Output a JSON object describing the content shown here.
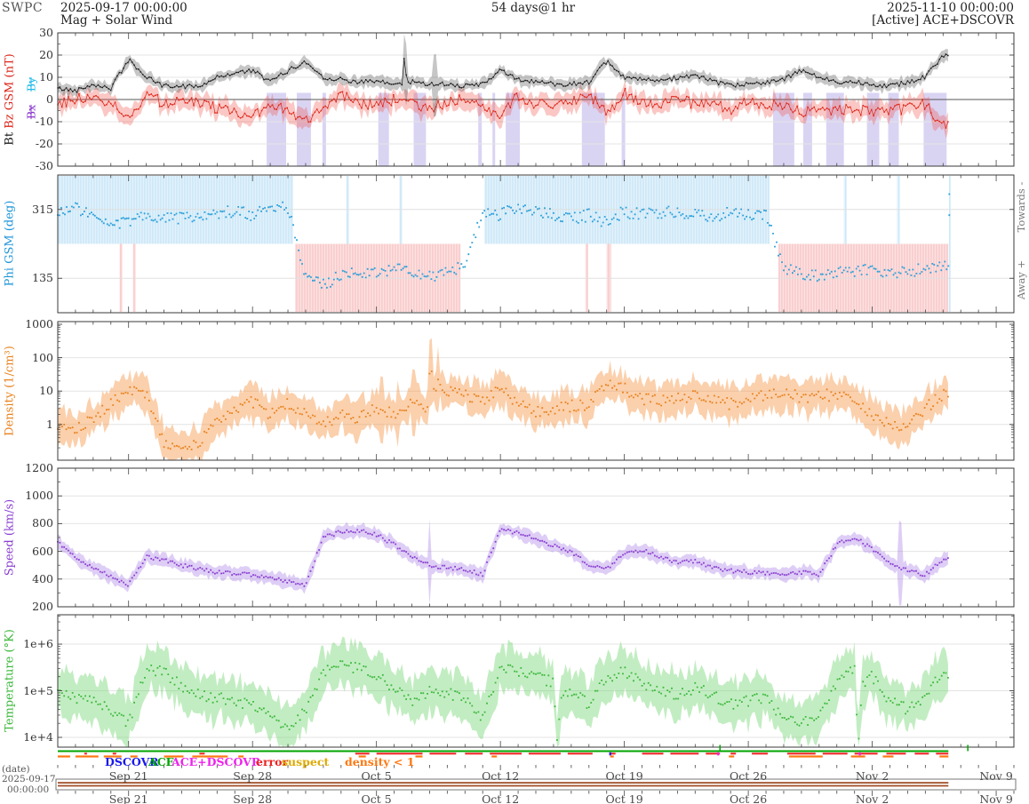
{
  "header": {
    "logo": "SWPC",
    "start_datetime": "2025-09-17 00:00:00",
    "duration": "54 days@1 hr",
    "end_datetime": "2025-11-10 00:00:00",
    "subtitle": "Mag + Solar Wind",
    "status": "[Active] ACE+DSCOVR"
  },
  "footer": {
    "date_label": "(date)",
    "start_date": "2025-09-17",
    "start_time": "00:00:00",
    "axis_dates": [
      "Sep 21",
      "Sep 28",
      "Oct 5",
      "Oct 12",
      "Oct 19",
      "Oct 26",
      "Nov 2",
      "Nov 9"
    ],
    "axis_date_days": [
      4,
      11,
      18,
      25,
      32,
      39,
      46,
      53
    ],
    "legend": [
      {
        "label": "DSCOVR",
        "color": "#1a1aee"
      },
      {
        "label": "ACE",
        "color": "#00a400"
      },
      {
        "label": "ACE+DSCOVR",
        "color": "#ee22ee"
      },
      {
        "label": "error",
        "color": "#ee2222"
      },
      {
        "label": "suspect",
        "color": "#ddaa00"
      },
      {
        "label": "density < 1",
        "color": "#ff7711"
      }
    ]
  },
  "chart_data": {
    "time_axis": {
      "start": "2025-09-17 00:00:00",
      "end": "2025-11-10 00:00:00",
      "span_days": 54,
      "cadence": "1 hr",
      "data_end_day": 50.3
    },
    "days": [
      0,
      1,
      2,
      3,
      4,
      5,
      6,
      7,
      8,
      9,
      10,
      11,
      12,
      13,
      14,
      15,
      16,
      17,
      18,
      19,
      20,
      21,
      22,
      23,
      24,
      25,
      26,
      27,
      28,
      29,
      30,
      31,
      32,
      33,
      34,
      35,
      36,
      37,
      38,
      39,
      40,
      41,
      42,
      43,
      44,
      45,
      46,
      47,
      48,
      49,
      50
    ],
    "panels": [
      {
        "id": "mag",
        "type": "line",
        "ylim": [
          -30,
          30
        ],
        "yticks": [
          "30",
          "20",
          "10",
          "0",
          "-10",
          "-20",
          "-30"
        ],
        "ytick_values": [
          30,
          20,
          10,
          0,
          -10,
          -20,
          -30
        ],
        "axis_label_parts": {
          "bt": "Bt ",
          "bz": "Bz GSM (nT)",
          "excluded_by": "By",
          "excluded_bx": "Bx"
        },
        "series": [
          {
            "name": "Bt",
            "color": "#1a1a1a",
            "values": [
              5,
              4,
              7,
              5,
              18,
              10,
              6,
              6,
              6,
              10,
              12,
              13,
              8,
              13,
              17,
              10,
              9,
              8,
              8,
              7,
              8,
              7,
              7,
              6,
              7,
              13,
              9,
              8,
              7,
              7,
              8,
              17,
              10,
              9,
              8,
              10,
              11,
              8,
              6,
              7,
              8,
              9,
              13,
              10,
              8,
              8,
              7,
              6,
              8,
              10,
              20
            ]
          },
          {
            "name": "Bz",
            "color": "#dd2418",
            "values": [
              -2,
              0,
              1,
              -1,
              -9,
              3,
              -2,
              0,
              -1,
              -4,
              -6,
              -8,
              -2,
              -5,
              -10,
              -3,
              2,
              -2,
              -3,
              0,
              -2,
              -5,
              -1,
              0,
              -2,
              -8,
              2,
              -2,
              -3,
              -1,
              2,
              -6,
              3,
              -2,
              -4,
              2,
              -3,
              -2,
              -5,
              -1,
              -3,
              -2,
              -6,
              -4,
              -5,
              -4,
              -6,
              -5,
              -4,
              -2,
              -12
            ]
          }
        ],
        "bt_spike_points": [
          [
            19.5,
            7
          ],
          [
            19.6,
            26
          ],
          [
            19.7,
            7
          ]
        ],
        "bt_band_spikes": [
          19.6,
          21.3
        ],
        "bz_uncertain_day_ranges": [
          [
            11.8,
            12.9
          ],
          [
            13.5,
            14.3
          ],
          [
            14.95,
            15.15
          ],
          [
            18.1,
            18.7
          ],
          [
            20.1,
            20.8
          ],
          [
            23.75,
            23.95
          ],
          [
            24.55,
            24.7
          ],
          [
            25.3,
            26.1
          ],
          [
            29.6,
            30.9
          ],
          [
            31.85,
            32.05
          ],
          [
            40.4,
            41.6
          ],
          [
            42.1,
            42.6
          ],
          [
            43.4,
            44.4
          ],
          [
            45.7,
            46.4
          ],
          [
            46.9,
            47.5
          ],
          [
            48.9,
            50.2
          ]
        ]
      },
      {
        "id": "phi",
        "type": "scatter",
        "ylabel": "Phi GSM (deg)",
        "ylim": [
          45,
          405
        ],
        "yticks": [
          "315",
          "135"
        ],
        "ytick_values": [
          315,
          135
        ],
        "right_labels": {
          "top": "Towards -",
          "bottom": "Away +"
        },
        "color": "#2b9fd9",
        "values": [
          310,
          320,
          300,
          265,
          285,
          300,
          290,
          295,
          300,
          305,
          310,
          300,
          315,
          320,
          140,
          120,
          140,
          150,
          145,
          160,
          150,
          140,
          150,
          165,
          310,
          300,
          320,
          310,
          300,
          290,
          300,
          280,
          310,
          300,
          305,
          310,
          300,
          295,
          310,
          305,
          300,
          160,
          150,
          140,
          150,
          155,
          160,
          145,
          150,
          160,
          170
        ],
        "sectors": [
          {
            "polarity": "towards",
            "start": 0,
            "end": 13.3
          },
          {
            "polarity": "away",
            "start": 13.4,
            "end": 22.75
          },
          {
            "polarity": "towards",
            "start": 24.1,
            "end": 40.2
          },
          {
            "polarity": "away",
            "start": 40.7,
            "end": 50.3
          }
        ],
        "sector_colors": {
          "towards": "#cfe9f8",
          "away": "#f9cdcd"
        },
        "slivers": [
          {
            "polarity": "away",
            "start": 3.5,
            "end": 3.65
          },
          {
            "polarity": "away",
            "start": 4.25,
            "end": 4.4
          },
          {
            "polarity": "towards",
            "start": 16.3,
            "end": 16.45
          },
          {
            "polarity": "towards",
            "start": 19.3,
            "end": 19.45
          },
          {
            "polarity": "away",
            "start": 29.8,
            "end": 29.95
          },
          {
            "polarity": "away",
            "start": 31.0,
            "end": 31.25
          },
          {
            "polarity": "towards",
            "start": 44.4,
            "end": 44.55
          },
          {
            "polarity": "towards",
            "start": 47.4,
            "end": 47.55
          }
        ],
        "trailing_line_day": 50.35
      },
      {
        "id": "density",
        "type": "scatter",
        "ylabel": "Density (1/cm³)",
        "yscale": "log",
        "ylim": [
          0.085,
          1200
        ],
        "yticks": [
          "1000",
          "100",
          "10",
          "1"
        ],
        "ytick_values": [
          1000,
          100,
          10,
          1
        ],
        "color": "#e8821e",
        "band_color": "rgba(247,150,70,0.45)",
        "values": [
          1.0,
          0.8,
          1.5,
          4,
          12,
          8,
          0.3,
          0.2,
          0.25,
          1.5,
          3,
          5,
          2,
          4,
          2,
          1,
          2,
          1.5,
          3,
          2,
          5,
          30,
          10,
          8,
          5,
          15,
          4,
          2.5,
          3,
          3.5,
          4,
          20,
          12,
          6,
          5,
          6,
          8,
          5,
          4,
          6,
          8,
          10,
          6,
          7,
          8,
          4,
          2,
          1,
          0.8,
          3,
          8
        ],
        "extra_points": [
          [
            20.9,
            3
          ],
          [
            21.05,
            60
          ],
          [
            21.3,
            8
          ],
          [
            21.5,
            35
          ],
          [
            21.8,
            6
          ]
        ],
        "band_spikes": [
          18.3,
          19.2,
          20.1,
          21.05,
          21.5
        ]
      },
      {
        "id": "speed",
        "type": "scatter",
        "ylabel": "Speed (km/s)",
        "ylim": [
          200,
          1200
        ],
        "yticks": [
          "1200",
          "1000",
          "800",
          "600",
          "400",
          "200"
        ],
        "ytick_values": [
          1200,
          1000,
          800,
          600,
          400,
          200
        ],
        "color": "#8a3fd0",
        "band_color": "rgba(160,115,230,0.35)",
        "values": [
          670,
          560,
          480,
          420,
          360,
          560,
          540,
          500,
          470,
          450,
          440,
          430,
          420,
          380,
          360,
          700,
          740,
          750,
          720,
          650,
          560,
          500,
          480,
          470,
          430,
          760,
          730,
          690,
          640,
          600,
          500,
          470,
          580,
          610,
          560,
          520,
          530,
          480,
          460,
          450,
          440,
          430,
          450,
          430,
          650,
          700,
          620,
          520,
          460,
          430,
          540
        ],
        "band_spikes": [
          21.0,
          47.6
        ]
      },
      {
        "id": "temperature",
        "type": "scatter",
        "ylabel": "Temperature (°K)",
        "yscale": "log",
        "ylim": [
          6200,
          4300000
        ],
        "yticks": [
          "1e+6",
          "1e+5",
          "1e+4"
        ],
        "ytick_values": [
          1000000,
          100000,
          10000
        ],
        "color": "#3cb83c",
        "band_color": "rgba(120,215,120,0.45)",
        "values": [
          100000,
          70000,
          60000,
          40000,
          20000,
          300000,
          250000,
          120000,
          80000,
          70000,
          60000,
          50000,
          30000,
          15000,
          40000,
          250000,
          350000,
          300000,
          200000,
          120000,
          60000,
          100000,
          90000,
          60000,
          25000,
          300000,
          250000,
          200000,
          150000,
          100000,
          50000,
          200000,
          250000,
          150000,
          100000,
          80000,
          120000,
          80000,
          50000,
          60000,
          70000,
          25000,
          20000,
          30000,
          150000,
          300000,
          200000,
          60000,
          40000,
          80000,
          250000
        ],
        "extra_points": [
          [
            28.0,
            120000
          ],
          [
            28.2,
            7000
          ],
          [
            28.45,
            90000
          ],
          [
            45.0,
            250000
          ],
          [
            45.2,
            5000
          ],
          [
            45.45,
            150000
          ]
        ]
      }
    ],
    "status_rows": {
      "ace_available": [
        [
          0,
          50.3
        ]
      ],
      "green_marks": [
        37.4,
        51.4
      ],
      "error": [
        [
          1.5,
          1.65
        ],
        [
          3.1,
          3.3
        ],
        [
          8.0,
          8.3
        ],
        [
          16.8,
          17.6
        ],
        [
          18.0,
          20.6
        ],
        [
          21.0,
          22.5
        ],
        [
          23.0,
          24.0
        ],
        [
          24.4,
          26.2
        ],
        [
          26.6,
          28.4
        ],
        [
          28.8,
          30.2
        ],
        [
          31.2,
          31.5
        ],
        [
          33.0,
          34.2
        ],
        [
          34.6,
          36.2
        ],
        [
          36.6,
          37.4
        ],
        [
          38.0,
          38.3
        ],
        [
          39.2,
          40.1
        ],
        [
          41.2,
          42.8
        ],
        [
          43.2,
          44.6
        ],
        [
          45.0,
          46.3
        ],
        [
          46.8,
          47.9
        ],
        [
          48.4,
          49.2
        ],
        [
          49.6,
          50.3
        ]
      ],
      "suspect": [
        [
          0,
          0.7
        ],
        [
          1.0,
          2.3
        ],
        [
          2.6,
          3.6
        ],
        [
          4.1,
          4.5
        ],
        [
          6.0,
          7.1
        ],
        [
          7.6,
          9.6
        ],
        [
          10.2,
          10.5
        ],
        [
          17.0,
          17.4
        ],
        [
          20.2,
          20.6
        ],
        [
          24.5,
          24.8
        ],
        [
          31.2,
          31.4
        ],
        [
          37.9,
          38.2
        ],
        [
          41.3,
          43.2
        ],
        [
          44.8,
          45.6
        ],
        [
          46.6,
          47.2
        ],
        [
          49.8,
          50.3
        ]
      ],
      "dscovr_marks": [
        31.2
      ],
      "ace_dscovr_marks": [
        37.3,
        45.3
      ]
    },
    "availability_bar": {
      "start_day": 0,
      "end_day": 50.3,
      "color": "#a2522c"
    }
  }
}
